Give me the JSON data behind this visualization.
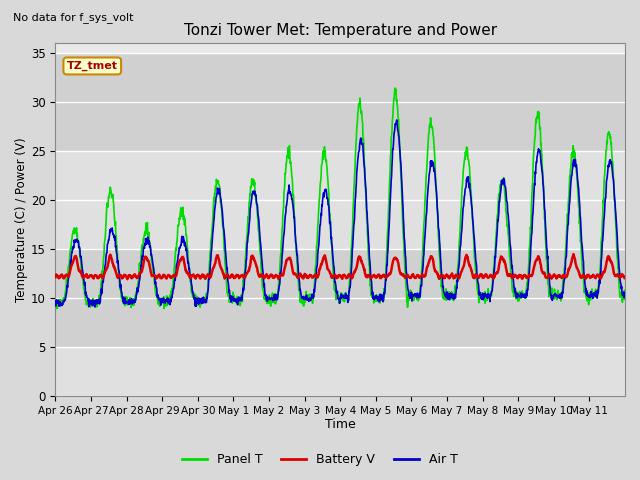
{
  "title": "Tonzi Tower Met: Temperature and Power",
  "xlabel": "Time",
  "ylabel": "Temperature (C) / Power (V)",
  "top_note": "No data for f_sys_volt",
  "legend_label": "TZ_tmet",
  "ylim": [
    0,
    36
  ],
  "yticks": [
    0,
    5,
    10,
    15,
    20,
    25,
    30,
    35
  ],
  "x_tick_labels": [
    "Apr 26",
    "Apr 27",
    "Apr 28",
    "Apr 29",
    "Apr 30",
    "May 1",
    "May 2",
    "May 3",
    "May 4",
    "May 5",
    "May 6",
    "May 7",
    "May 8",
    "May 9",
    "May 10",
    "May 11"
  ],
  "panel_t_color": "#00dd00",
  "battery_v_color": "#dd0000",
  "air_t_color": "#0000cc",
  "fig_bg_color": "#d9d9d9",
  "plot_bg_color": "#e8e8e8",
  "line_width": 1.2,
  "legend_entries": [
    "Panel T",
    "Battery V",
    "Air T"
  ],
  "legend_colors": [
    "#00dd00",
    "#dd0000",
    "#0000cc"
  ],
  "grid_color": "#ffffff",
  "shade_top_color": "#c8c8c8",
  "shade_bot_color": "#e8e8e8"
}
